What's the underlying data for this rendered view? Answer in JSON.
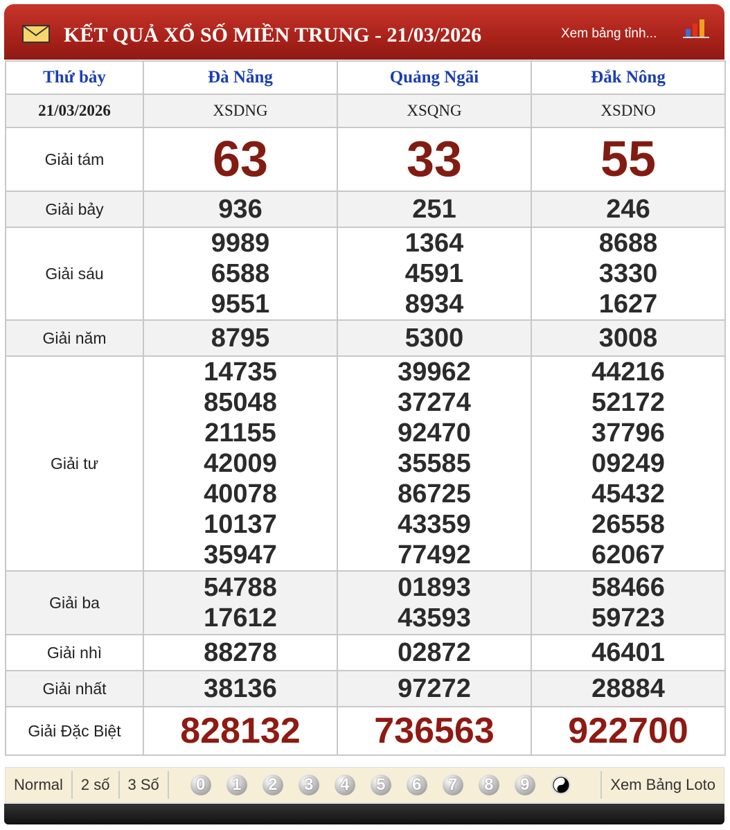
{
  "header": {
    "title": "KẾT QUẢ XỔ SỐ MIỀN TRUNG - 21/03/2026",
    "link": "Xem bảng tỉnh..."
  },
  "table": {
    "day": "Thứ bảy",
    "date": "21/03/2026",
    "provinces": [
      {
        "name": "Đà Nẵng",
        "code": "XSDNG"
      },
      {
        "name": "Quảng Ngãi",
        "code": "XSQNG"
      },
      {
        "name": "Đắk Nông",
        "code": "XSDNO"
      }
    ],
    "prizes": [
      {
        "name": "Giải tám",
        "results": [
          [
            "63"
          ],
          [
            "33"
          ],
          [
            "55"
          ]
        ]
      },
      {
        "name": "Giải bảy",
        "results": [
          [
            "936"
          ],
          [
            "251"
          ],
          [
            "246"
          ]
        ]
      },
      {
        "name": "Giải sáu",
        "results": [
          [
            "9989",
            "6588",
            "9551"
          ],
          [
            "1364",
            "4591",
            "8934"
          ],
          [
            "8688",
            "3330",
            "1627"
          ]
        ]
      },
      {
        "name": "Giải năm",
        "results": [
          [
            "8795"
          ],
          [
            "5300"
          ],
          [
            "3008"
          ]
        ]
      },
      {
        "name": "Giải tư",
        "results": [
          [
            "14735",
            "85048",
            "21155",
            "42009",
            "40078",
            "10137",
            "35947"
          ],
          [
            "39962",
            "37274",
            "92470",
            "35585",
            "86725",
            "43359",
            "77492"
          ],
          [
            "44216",
            "52172",
            "37796",
            "09249",
            "45432",
            "26558",
            "62067"
          ]
        ]
      },
      {
        "name": "Giải ba",
        "results": [
          [
            "54788",
            "17612"
          ],
          [
            "01893",
            "43593"
          ],
          [
            "58466",
            "59723"
          ]
        ]
      },
      {
        "name": "Giải nhì",
        "results": [
          [
            "88278"
          ],
          [
            "02872"
          ],
          [
            "46401"
          ]
        ]
      },
      {
        "name": "Giải nhất",
        "results": [
          [
            "38136"
          ],
          [
            "97272"
          ],
          [
            "28884"
          ]
        ]
      },
      {
        "name": "Giải Đặc Biệt",
        "results": [
          [
            "828132"
          ],
          [
            "736563"
          ],
          [
            "922700"
          ]
        ]
      }
    ]
  },
  "footer": {
    "modes": [
      "Normal",
      "2 số",
      "3 Số"
    ],
    "digits": [
      "0",
      "1",
      "2",
      "3",
      "4",
      "5",
      "6",
      "7",
      "8",
      "9"
    ],
    "link": "Xem Bảng Loto"
  }
}
